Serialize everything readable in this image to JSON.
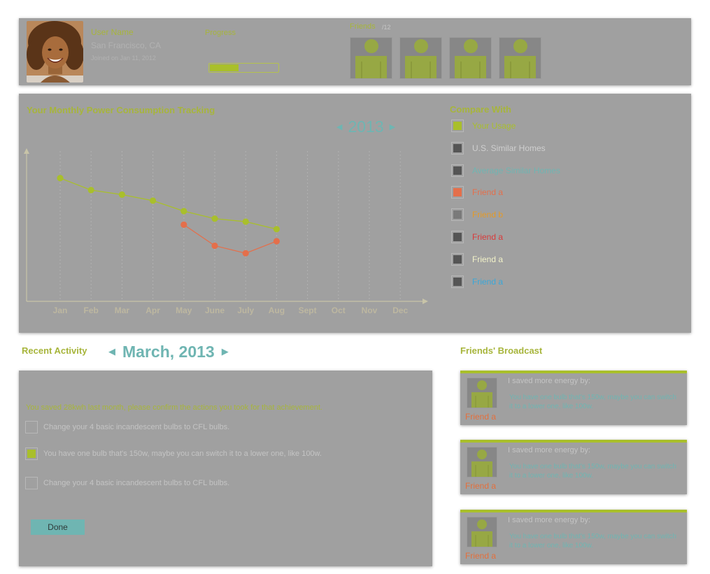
{
  "profile": {
    "user_name": "User Name",
    "location": "San Francisco, CA",
    "joined": "Joined on Jan 11, 2012",
    "progress_label": "Progress",
    "progress_fraction": 0.42,
    "friends_label": "Friends",
    "friends_count": "/12"
  },
  "chart_panel": {
    "title": "Your Monthly Power Consumption Tracking",
    "year": "2013",
    "compare_title": "Compare With",
    "compare_items": [
      {
        "label": "Your Usage",
        "checked": true,
        "swatch": "#a9bf2b",
        "text_color": "#a9bf2b"
      },
      {
        "label": "U.S. Similar Homes",
        "checked": false,
        "swatch": "#555555",
        "text_color": "#cfcfcf"
      },
      {
        "label": "Average Similar Homes",
        "checked": false,
        "swatch": "#555555",
        "text_color": "#6fb5b2"
      },
      {
        "label": "Friend a",
        "checked": false,
        "swatch": "#e46f4b",
        "text_color": "#e46f4b"
      },
      {
        "label": "Friend b",
        "checked": false,
        "swatch": "#7a7a7a",
        "text_color": "#e59a26"
      },
      {
        "label": "Friend a",
        "checked": false,
        "swatch": "#555555",
        "text_color": "#d93a3a"
      },
      {
        "label": "Friend a",
        "checked": false,
        "swatch": "#555555",
        "text_color": "#f2f2c8"
      },
      {
        "label": "Friend a",
        "checked": false,
        "swatch": "#555555",
        "text_color": "#3aa7d9"
      }
    ]
  },
  "chart_data": {
    "type": "line",
    "categories": [
      "Jan",
      "Feb",
      "Mar",
      "Apr",
      "May",
      "June",
      "July",
      "Aug",
      "Sept",
      "Oct",
      "Nov",
      "Dec"
    ],
    "ylim": [
      0,
      100
    ],
    "series": [
      {
        "color": "#a9bf2b",
        "values": [
          82,
          74,
          71,
          67,
          60,
          55,
          53,
          48,
          null,
          null,
          null,
          null
        ]
      },
      {
        "color": "#e46f4b",
        "values": [
          null,
          null,
          null,
          null,
          51,
          37,
          32,
          40,
          null,
          null,
          null,
          null
        ]
      }
    ]
  },
  "activity": {
    "title": "Recent Activity",
    "month": "March, 2013",
    "intro": "You saved 28kwh last month, please confirm the actions you took for that achievement.",
    "items": [
      {
        "text": "Change your 4 basic incandescent bulbs to CFL bulbs.",
        "checked": false
      },
      {
        "text": "You have one bulb that's 150w, maybe you can switch it to a lower one, like 100w.",
        "checked": true
      },
      {
        "text": "Change your 4 basic incandescent bulbs to CFL bulbs.",
        "checked": false
      }
    ],
    "done_label": "Done"
  },
  "broadcast": {
    "title": "Friends' Broadcast",
    "cards": [
      {
        "name": "Friend a",
        "headline": "I saved more energy by:",
        "detail": "You have one bulb that's 150w, maybe you can switch it to a lower one, like 100w."
      },
      {
        "name": "Friend a",
        "headline": "I saved more energy by:",
        "detail": "You have one bulb that's 150w, maybe you can switch it to a lower one, like 100w."
      },
      {
        "name": "Friend a",
        "headline": "I saved more energy by:",
        "detail": "You have one bulb that's 150w, maybe you can switch it to a lower one, like 100w."
      }
    ]
  },
  "colors": {
    "accent_green": "#a9bf2b",
    "accent_teal": "#6fb5b2",
    "panel_gray": "#a0a0a0",
    "friend_orange": "#e46f4b"
  },
  "icons": {
    "nav_prev": "caret-left-icon",
    "nav_next": "caret-right-icon",
    "friend_avatar": "person-silhouette-icon"
  }
}
